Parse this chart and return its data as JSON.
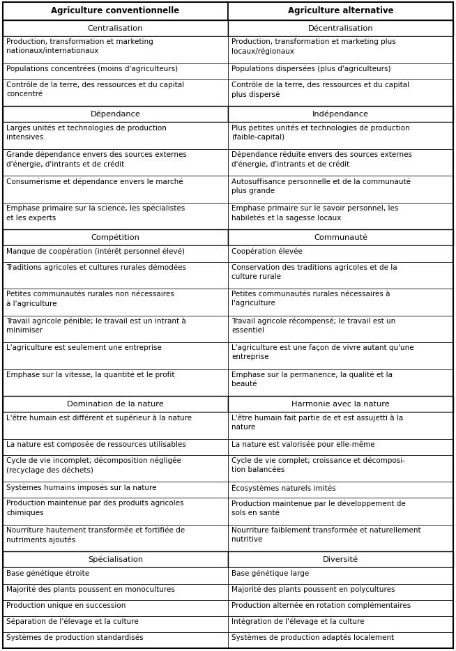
{
  "col1_header": "Agriculture conventionnelle",
  "col2_header": "Agriculture alternative",
  "rows": [
    {
      "type": "section",
      "col1": "Centralisation",
      "col2": "Décentralisation"
    },
    {
      "type": "data",
      "col1": "Production, transformation et marketing\nnationaux/internationaux",
      "col2": "Production, transformation et marketing plus\nlocaux/régionaux"
    },
    {
      "type": "data",
      "col1": "Populations concentrées (moins d'agriculteurs)",
      "col2": "Populations dispersées (plus d'agriculteurs)"
    },
    {
      "type": "data",
      "col1": "Contrôle de la terre, des ressources et du capital\nconcentré",
      "col2": "Contrôle de la terre, des ressources et du capital\nplus dispersé"
    },
    {
      "type": "section",
      "col1": "Dépendance",
      "col2": "Indépendance"
    },
    {
      "type": "data",
      "col1": "Larges unités et technologies de production\nintensives",
      "col2": "Plus petites unités et technologies de production\n(faible-capital)"
    },
    {
      "type": "data",
      "col1": "Grande dépendance envers des sources externes\nd'énergie, d'intrants et de crédit",
      "col2": "Dépendance réduite envers des sources externes\nd'énergie, d'intrants et de crédit"
    },
    {
      "type": "data",
      "col1": "Consumérisme et dépendance envers le marché",
      "col2": "Autosuffisance personnelle et de la communauté\nplus grande"
    },
    {
      "type": "data",
      "col1": "Emphase primaire sur la science, les spécialistes\net les experts",
      "col2": "Emphase primaire sur le savoir personnel, les\nhabiletés et la sagesse locaux"
    },
    {
      "type": "section",
      "col1": "Compétition",
      "col2": "Communauté"
    },
    {
      "type": "data",
      "col1": "Manque de coopération (intérêt personnel élevé)",
      "col2": "Coopération élevée"
    },
    {
      "type": "data",
      "col1": "Traditions agricoles et cultures rurales démodées",
      "col2": "Conservation des traditions agricoles et de la\nculture rurale"
    },
    {
      "type": "data",
      "col1": "Petites communautés rurales non nécessaires\nà l'agriculture",
      "col2": "Petites communautés rurales nécessaires à\nl'agriculture"
    },
    {
      "type": "data",
      "col1": "Travail agricole pénible; le travail est un intrant à\nminimiser",
      "col2": "Travail agricole récompensé; le travail est un\nessentiel"
    },
    {
      "type": "data",
      "col1": "L'agriculture est seulement une entreprise",
      "col2": "L'agriculture est une façon de vivre autant qu'une\nentreprise"
    },
    {
      "type": "data",
      "col1": "Emphase sur la vitesse, la quantité et le profit",
      "col2": "Emphase sur la permanence, la qualité et la\nbeauté"
    },
    {
      "type": "section",
      "col1": "Domination de la nature",
      "col2": "Harmonie avec la nature"
    },
    {
      "type": "data",
      "col1": "L'être humain est différent et supérieur à la nature",
      "col2": "L'être humain fait partie de et est assujetti à la\nnature"
    },
    {
      "type": "data",
      "col1": "La nature est composée de ressources utilisables",
      "col2": "La nature est valorisée pour elle-même"
    },
    {
      "type": "data",
      "col1": "Cycle de vie incomplet; décomposition négligée\n(recyclage des déchets)",
      "col2": "Cycle de vie complet; croissance et décomposi-\ntion balancées"
    },
    {
      "type": "data",
      "col1": "Systèmes humains imposés sur la nature",
      "col2": "Écosystèmes naturels imités"
    },
    {
      "type": "data",
      "col1": "Production maintenue par des produits agricoles\nchimiques",
      "col2": "Production maintenue par le développement de\nsols en santé"
    },
    {
      "type": "data",
      "col1": "Nourriture hautement transformée et fortifiée de\nnutriments ajoutés",
      "col2": "Nourriture faiblement transformée et naturellement\nnutritive"
    },
    {
      "type": "section",
      "col1": "Spécialisation",
      "col2": "Diversité"
    },
    {
      "type": "data",
      "col1": "Base génétique étroite",
      "col2": "Base génétique large"
    },
    {
      "type": "data",
      "col1": "Majorité des plants poussent en monocultures",
      "col2": "Majorité des plants poussent en polycultures"
    },
    {
      "type": "data",
      "col1": "Production unique en succession",
      "col2": "Production alternée en rotation complémentaires"
    },
    {
      "type": "data",
      "col1": "Séparation de l'élevage et la culture",
      "col2": "Intégration de l'élevage et la culture"
    },
    {
      "type": "data",
      "col1": "Systèmes de production standardisés",
      "col2": "Systèmes de production adaptés localement"
    }
  ],
  "text_color": "#000000",
  "bg_color": "#ffffff",
  "header_fontsize": 8.5,
  "section_fontsize": 8.2,
  "data_fontsize": 7.5,
  "fig_width": 6.54,
  "fig_height": 9.34
}
